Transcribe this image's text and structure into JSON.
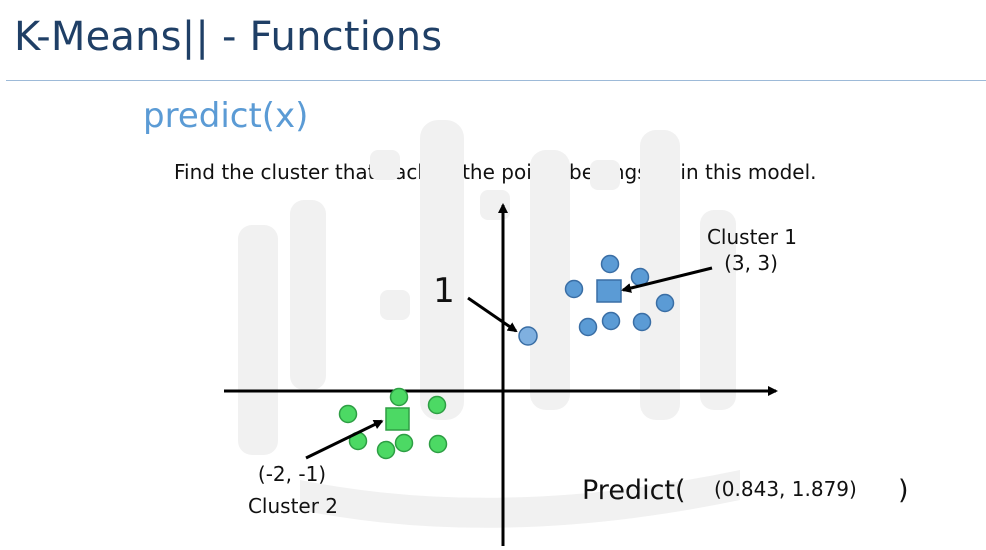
{
  "slide": {
    "title": "K-Means|| - Functions",
    "function_name": "predict(x)",
    "description": "Find the cluster that each of the points belongs to in this model."
  },
  "diagram": {
    "cluster1": {
      "name": "Cluster 1",
      "center_label": "(3, 3)",
      "color": "#5b9bd5"
    },
    "cluster2": {
      "name": "Cluster 2",
      "center_label": "(-2, -1)",
      "color": "#4cd964"
    },
    "query_point": {
      "result_label": "1",
      "color": "#7fb0e0"
    },
    "predict_call": {
      "prefix": "Predict(",
      "argument": "(0.843, 1.879)",
      "suffix": ")"
    },
    "colors": {
      "axis": "#000000",
      "point_stroke": "#3a6ea5",
      "green_stroke": "#2e9e44",
      "watermark": "#f1f1f1"
    }
  }
}
